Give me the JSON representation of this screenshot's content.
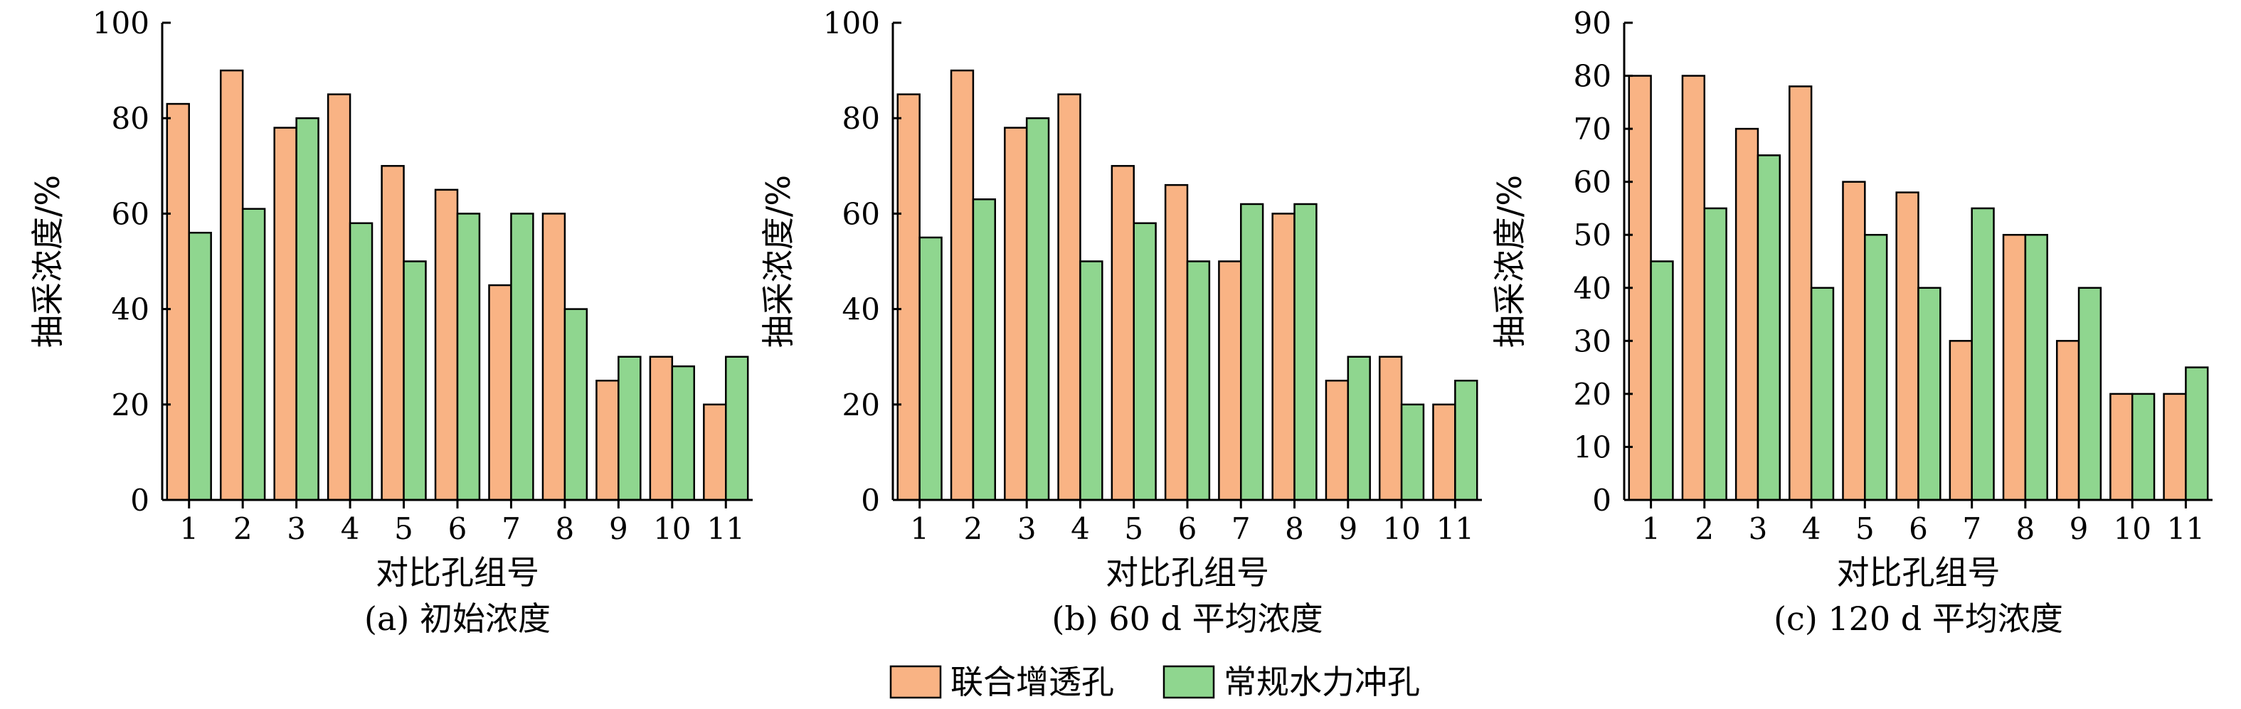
{
  "colors": {
    "series_0": "#f9b384",
    "series_1": "#8fd68f",
    "stroke": "#000000"
  },
  "legend": {
    "placement": "bottom-center",
    "items": [
      "联合增透孔",
      "常规水力冲孔"
    ]
  },
  "chart_data": [
    {
      "type": "bar",
      "caption": "(a) 初始浓度",
      "xlabel": "对比孔组号",
      "ylabel": "抽采浓度/%",
      "categories": [
        "1",
        "2",
        "3",
        "4",
        "5",
        "6",
        "7",
        "8",
        "9",
        "10",
        "11"
      ],
      "ylim": [
        0,
        100
      ],
      "yticks": [
        0,
        20,
        40,
        60,
        80,
        100
      ],
      "grid": false,
      "series": [
        {
          "name": "联合增透孔",
          "values": [
            83,
            90,
            78,
            85,
            70,
            65,
            45,
            60,
            25,
            30,
            20
          ]
        },
        {
          "name": "常规水力冲孔",
          "values": [
            56,
            61,
            80,
            58,
            50,
            60,
            60,
            40,
            30,
            28,
            30
          ]
        }
      ]
    },
    {
      "type": "bar",
      "caption": "(b) 60 d 平均浓度",
      "xlabel": "对比孔组号",
      "ylabel": "抽采浓度/%",
      "categories": [
        "1",
        "2",
        "3",
        "4",
        "5",
        "6",
        "7",
        "8",
        "9",
        "10",
        "11"
      ],
      "ylim": [
        0,
        100
      ],
      "yticks": [
        0,
        20,
        40,
        60,
        80,
        100
      ],
      "grid": false,
      "series": [
        {
          "name": "联合增透孔",
          "values": [
            85,
            90,
            78,
            85,
            70,
            66,
            50,
            60,
            25,
            30,
            20
          ]
        },
        {
          "name": "常规水力冲孔",
          "values": [
            55,
            63,
            80,
            50,
            58,
            50,
            62,
            62,
            30,
            20,
            25
          ]
        }
      ]
    },
    {
      "type": "bar",
      "caption": "(c) 120 d 平均浓度",
      "xlabel": "对比孔组号",
      "ylabel": "抽采浓度/%",
      "categories": [
        "1",
        "2",
        "3",
        "4",
        "5",
        "6",
        "7",
        "8",
        "9",
        "10",
        "11"
      ],
      "ylim": [
        0,
        90
      ],
      "yticks": [
        0,
        10,
        20,
        30,
        40,
        50,
        60,
        70,
        80,
        90
      ],
      "grid": false,
      "series": [
        {
          "name": "联合增透孔",
          "values": [
            80,
            80,
            70,
            78,
            60,
            58,
            30,
            50,
            30,
            20,
            20
          ]
        },
        {
          "name": "常规水力冲孔",
          "values": [
            45,
            55,
            65,
            40,
            50,
            40,
            55,
            50,
            40,
            20,
            25
          ]
        }
      ]
    }
  ]
}
